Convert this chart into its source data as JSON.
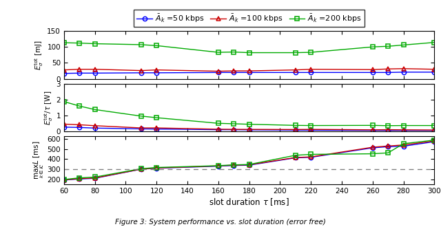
{
  "tau": [
    60,
    70,
    80,
    110,
    120,
    160,
    170,
    180,
    210,
    220,
    260,
    270,
    280,
    300
  ],
  "E_tot_50": [
    17,
    18,
    18,
    19,
    19,
    20,
    20,
    20,
    20,
    20,
    20,
    20,
    21,
    21
  ],
  "E_tot_100": [
    28,
    30,
    30,
    26,
    28,
    24,
    25,
    25,
    28,
    30,
    29,
    31,
    32,
    30
  ],
  "E_tot_200": [
    113,
    112,
    110,
    107,
    104,
    83,
    84,
    82,
    82,
    83,
    100,
    102,
    106,
    114
  ],
  "Epow_50": [
    0.28,
    0.26,
    0.22,
    0.17,
    0.16,
    0.12,
    0.12,
    0.11,
    0.095,
    0.091,
    0.077,
    0.074,
    0.075,
    0.07
  ],
  "Epow_100": [
    0.47,
    0.43,
    0.37,
    0.23,
    0.23,
    0.15,
    0.14,
    0.14,
    0.13,
    0.14,
    0.11,
    0.12,
    0.11,
    0.1
  ],
  "Epow_200": [
    1.88,
    1.6,
    1.38,
    0.97,
    0.87,
    0.52,
    0.49,
    0.46,
    0.39,
    0.38,
    0.39,
    0.37,
    0.38,
    0.38
  ],
  "L_50": [
    193,
    203,
    210,
    300,
    310,
    330,
    337,
    340,
    413,
    418,
    512,
    523,
    528,
    573
  ],
  "L_100": [
    194,
    207,
    213,
    301,
    312,
    333,
    340,
    344,
    416,
    422,
    518,
    530,
    540,
    580
  ],
  "L_200": [
    198,
    214,
    222,
    305,
    317,
    335,
    343,
    347,
    438,
    447,
    453,
    462,
    553,
    588
  ],
  "legend_labels": [
    "$\\bar{A}_k$ =50 kbps",
    "$\\bar{A}_k$ =100 kbps",
    "$\\bar{A}_k$ =200 kbps"
  ],
  "colors": [
    "#0000ff",
    "#cc0000",
    "#00aa00"
  ],
  "xlabel": "slot duration $\\tau$ [ms]",
  "ylabel1": "$E^{\\rm tot}_{\\sigma}$ [mJ]",
  "ylabel2": "$E^{\\rm tot}_{\\sigma}/\\tau$ [W]",
  "ylabel3": "$\\underset{k\\in\\mathcal{K}}{\\max} L$ [ms]",
  "caption": "Figure 3: System performance vs. slot duration (error free)",
  "ylim1": [
    0,
    150
  ],
  "ylim2": [
    0,
    3
  ],
  "ylim3": [
    150,
    625
  ],
  "dashed_line": 300,
  "yticks1": [
    0,
    50,
    100,
    150
  ],
  "yticks2": [
    0,
    1,
    2,
    3
  ],
  "yticks3": [
    200,
    300,
    400,
    500,
    600
  ],
  "xticks": [
    60,
    80,
    100,
    120,
    140,
    160,
    180,
    200,
    220,
    240,
    260,
    280,
    300
  ]
}
